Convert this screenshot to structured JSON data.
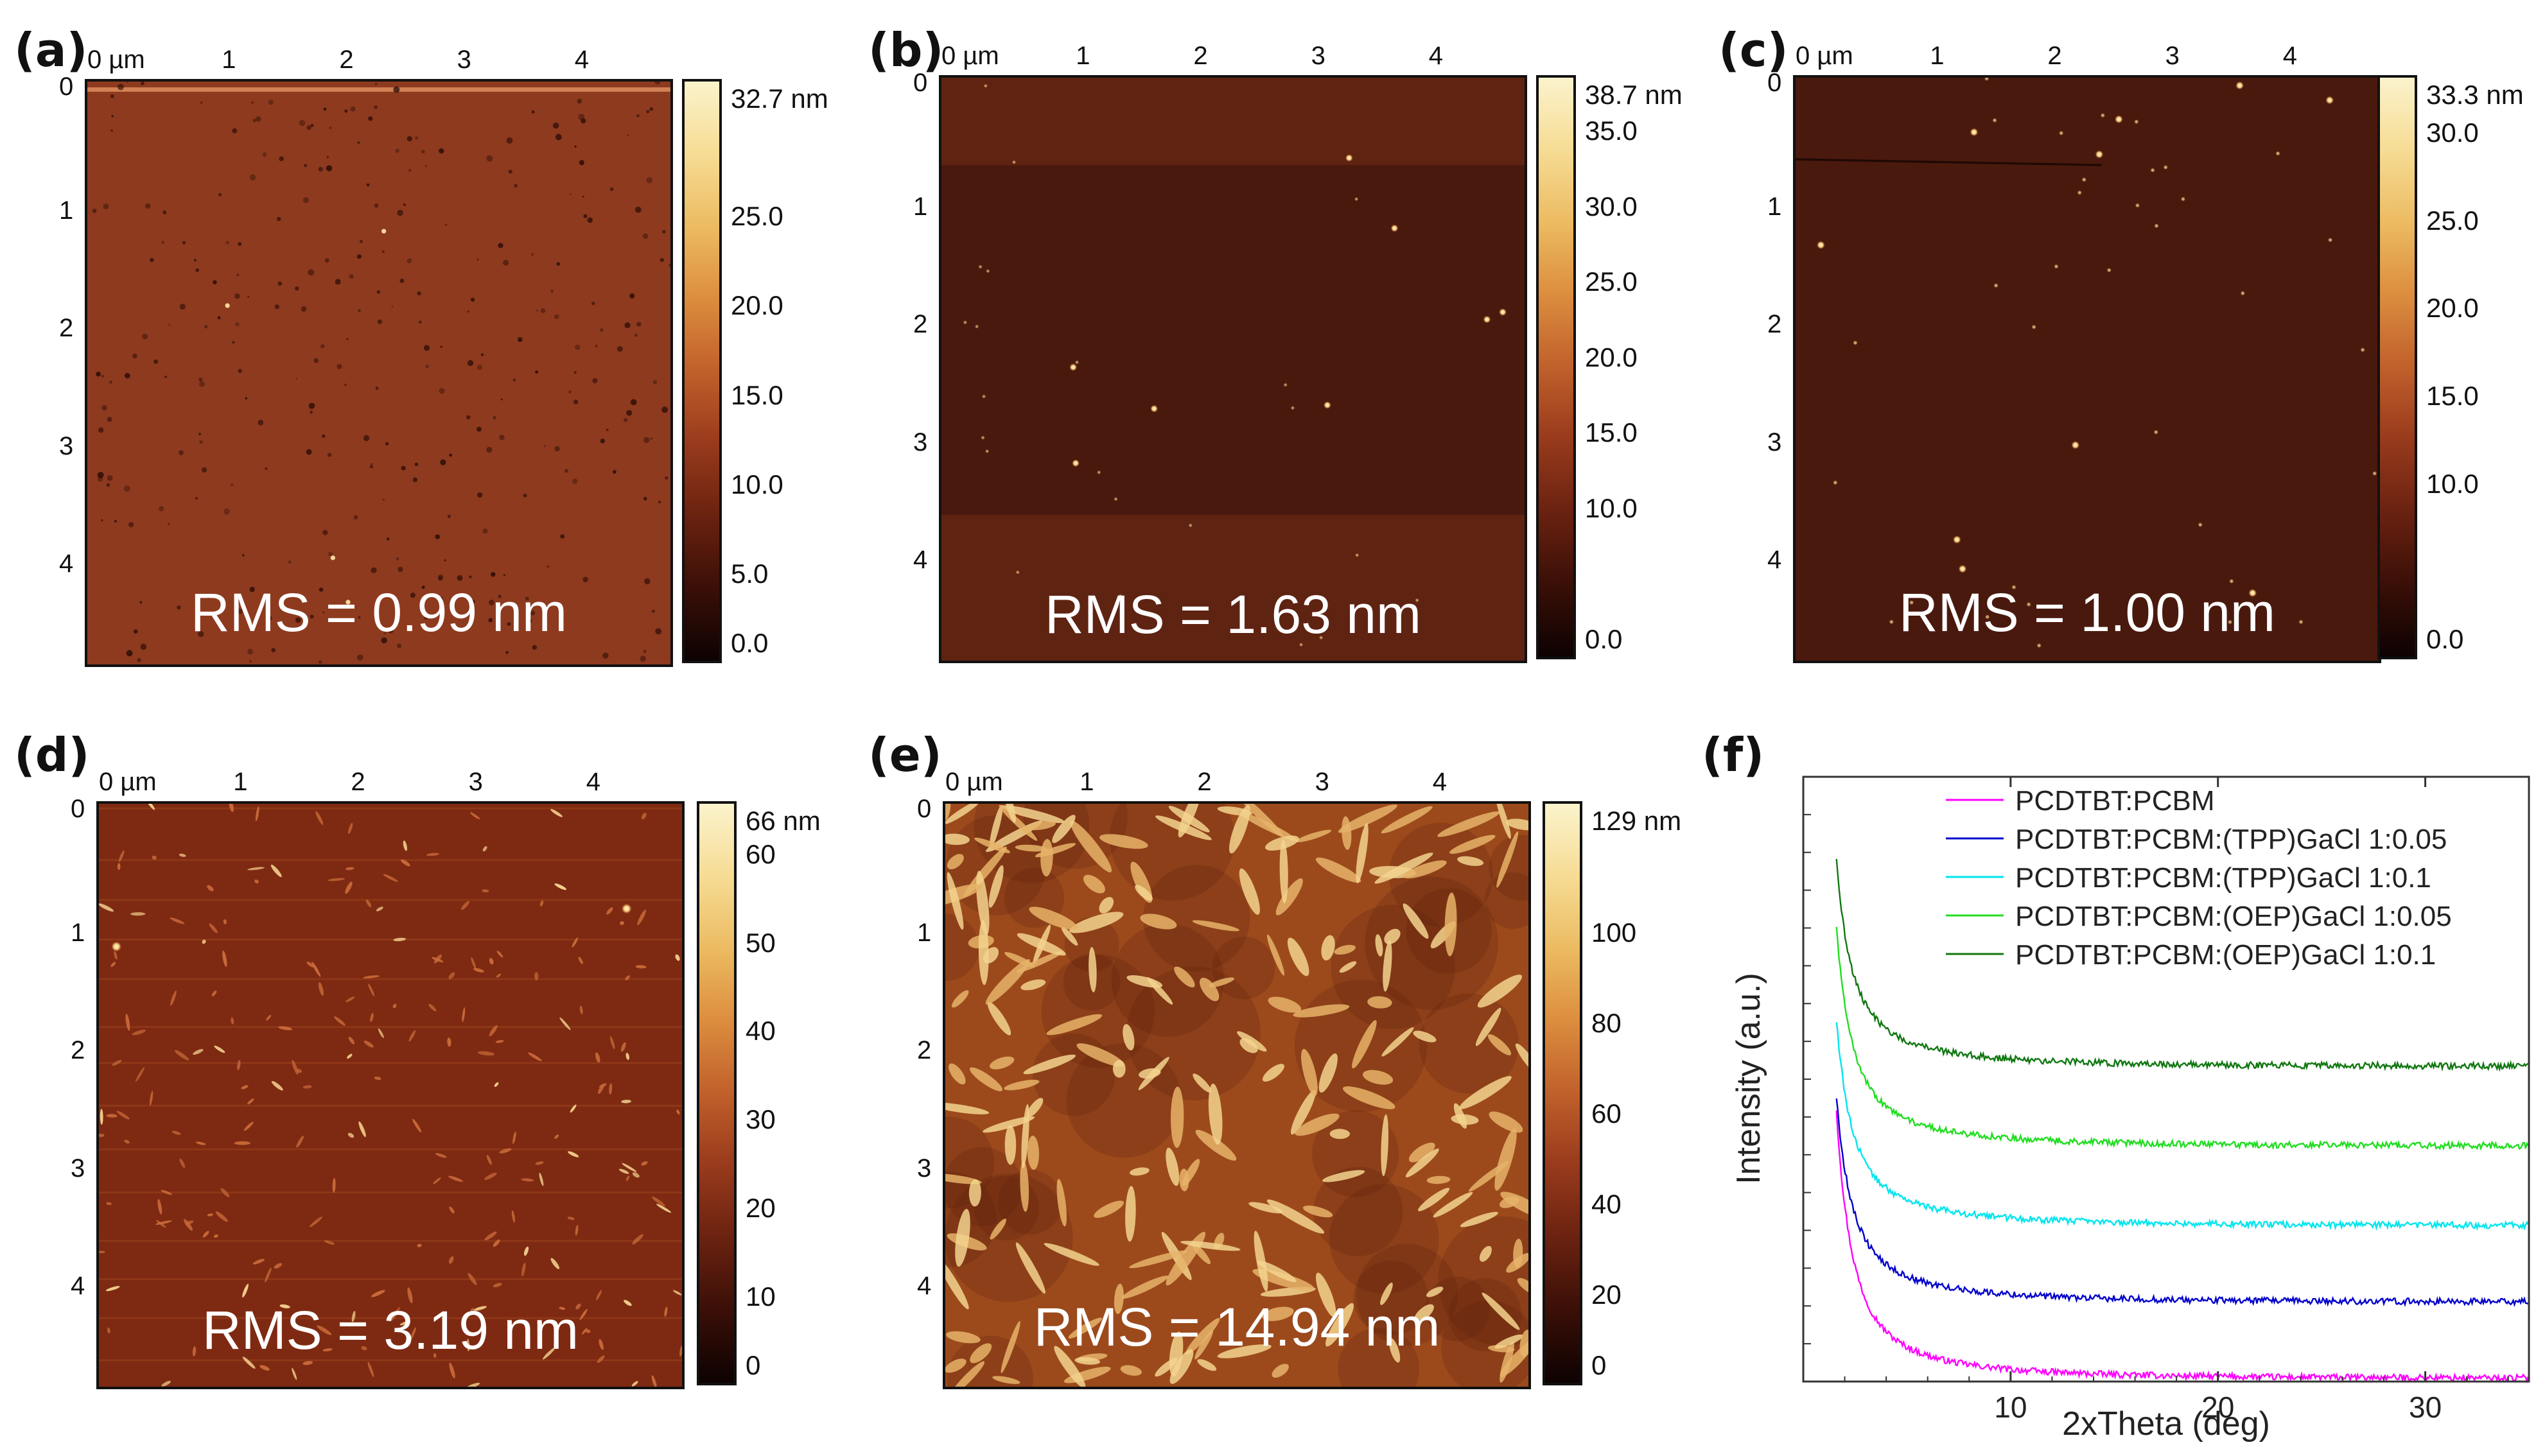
{
  "panels": {
    "a": {
      "letter": "(a)",
      "x_ticks": [
        "0 µm",
        "1",
        "2",
        "3",
        "4"
      ],
      "y_ticks": [
        "0",
        "1",
        "2",
        "3",
        "4"
      ],
      "rms": "RMS = 0.99 nm",
      "scale_labels": [
        "32.7 nm",
        "25.0",
        "20.0",
        "15.0",
        "10.0",
        "5.0",
        "0.0"
      ],
      "scale_values": [
        32.7,
        25.0,
        20.0,
        15.0,
        10.0,
        5.0,
        0.0
      ]
    },
    "b": {
      "letter": "(b)",
      "x_ticks": [
        "0 µm",
        "1",
        "2",
        "3",
        "4"
      ],
      "y_ticks": [
        "0",
        "1",
        "2",
        "3",
        "4"
      ],
      "rms": "RMS = 1.63 nm",
      "scale_labels": [
        "38.7 nm",
        "35.0",
        "30.0",
        "25.0",
        "20.0",
        "15.0",
        "10.0",
        "0.0"
      ],
      "scale_values": [
        38.7,
        35.0,
        30.0,
        25.0,
        20.0,
        15.0,
        10.0,
        0.0
      ]
    },
    "c": {
      "letter": "(c)",
      "x_ticks": [
        "0 µm",
        "1",
        "2",
        "3",
        "4"
      ],
      "y_ticks": [
        "0",
        "1",
        "2",
        "3",
        "4"
      ],
      "rms": "RMS = 1.00 nm",
      "scale_labels": [
        "33.3 nm",
        "30.0",
        "25.0",
        "20.0",
        "15.0",
        "10.0",
        "0.0"
      ],
      "scale_values": [
        33.3,
        30.0,
        25.0,
        20.0,
        15.0,
        10.0,
        0.0
      ]
    },
    "d": {
      "letter": "(d)",
      "x_ticks": [
        "0 µm",
        "1",
        "2",
        "3",
        "4"
      ],
      "y_ticks": [
        "0",
        "1",
        "2",
        "3",
        "4"
      ],
      "rms": "RMS = 3.19 nm",
      "scale_labels": [
        "66 nm",
        "60",
        "50",
        "40",
        "30",
        "20",
        "10",
        "0"
      ],
      "scale_values": [
        66,
        60,
        50,
        40,
        30,
        20,
        10,
        0
      ]
    },
    "e": {
      "letter": "(e)",
      "x_ticks": [
        "0 µm",
        "1",
        "2",
        "3",
        "4"
      ],
      "y_ticks": [
        "0",
        "1",
        "2",
        "3",
        "4"
      ],
      "rms": "RMS = 14.94 nm",
      "scale_labels": [
        "129 nm",
        "100",
        "80",
        "60",
        "40",
        "20",
        "0"
      ],
      "scale_values": [
        129,
        100,
        80,
        60,
        40,
        20,
        0
      ]
    }
  },
  "panel_f_letter": "(f)",
  "colormap": [
    "#0d0202",
    "#3a0f07",
    "#6a2210",
    "#983a1c",
    "#c0602b",
    "#dc8d3e",
    "#ecbb62",
    "#f6dc94",
    "#fbf3cc"
  ],
  "chart_data": {
    "type": "line",
    "xlabel": "2xTheta (deg)",
    "ylabel": "Intensity (a.u.)",
    "xlim": [
      0,
      35
    ],
    "x_ticks": [
      10,
      20,
      30
    ],
    "x_tick_labels": [
      "10",
      "20",
      "30"
    ],
    "legend_position": "top-right",
    "series": [
      {
        "name": "PCDTBT:PCBM",
        "color": "#ff00ff",
        "baseline": 0.05,
        "amplitude": 4.0
      },
      {
        "name": "PCDTBT:PCBM:(TPP)GaCl 1:0.05",
        "color": "#0000cc",
        "baseline": 1.25,
        "amplitude": 3.0
      },
      {
        "name": "PCDTBT:PCBM:(TPP)GaCl 1:0.1",
        "color": "#00e5ee",
        "baseline": 2.45,
        "amplitude": 3.0
      },
      {
        "name": "PCDTBT:PCBM:(OEP)GaCl 1:0.05",
        "color": "#22dd22",
        "baseline": 3.7,
        "amplitude": 3.2
      },
      {
        "name": "PCDTBT:PCBM:(OEP)GaCl 1:0.1",
        "color": "#117711",
        "baseline": 4.95,
        "amplitude": 3.0
      }
    ],
    "ylim": [
      0,
      9.5
    ]
  }
}
